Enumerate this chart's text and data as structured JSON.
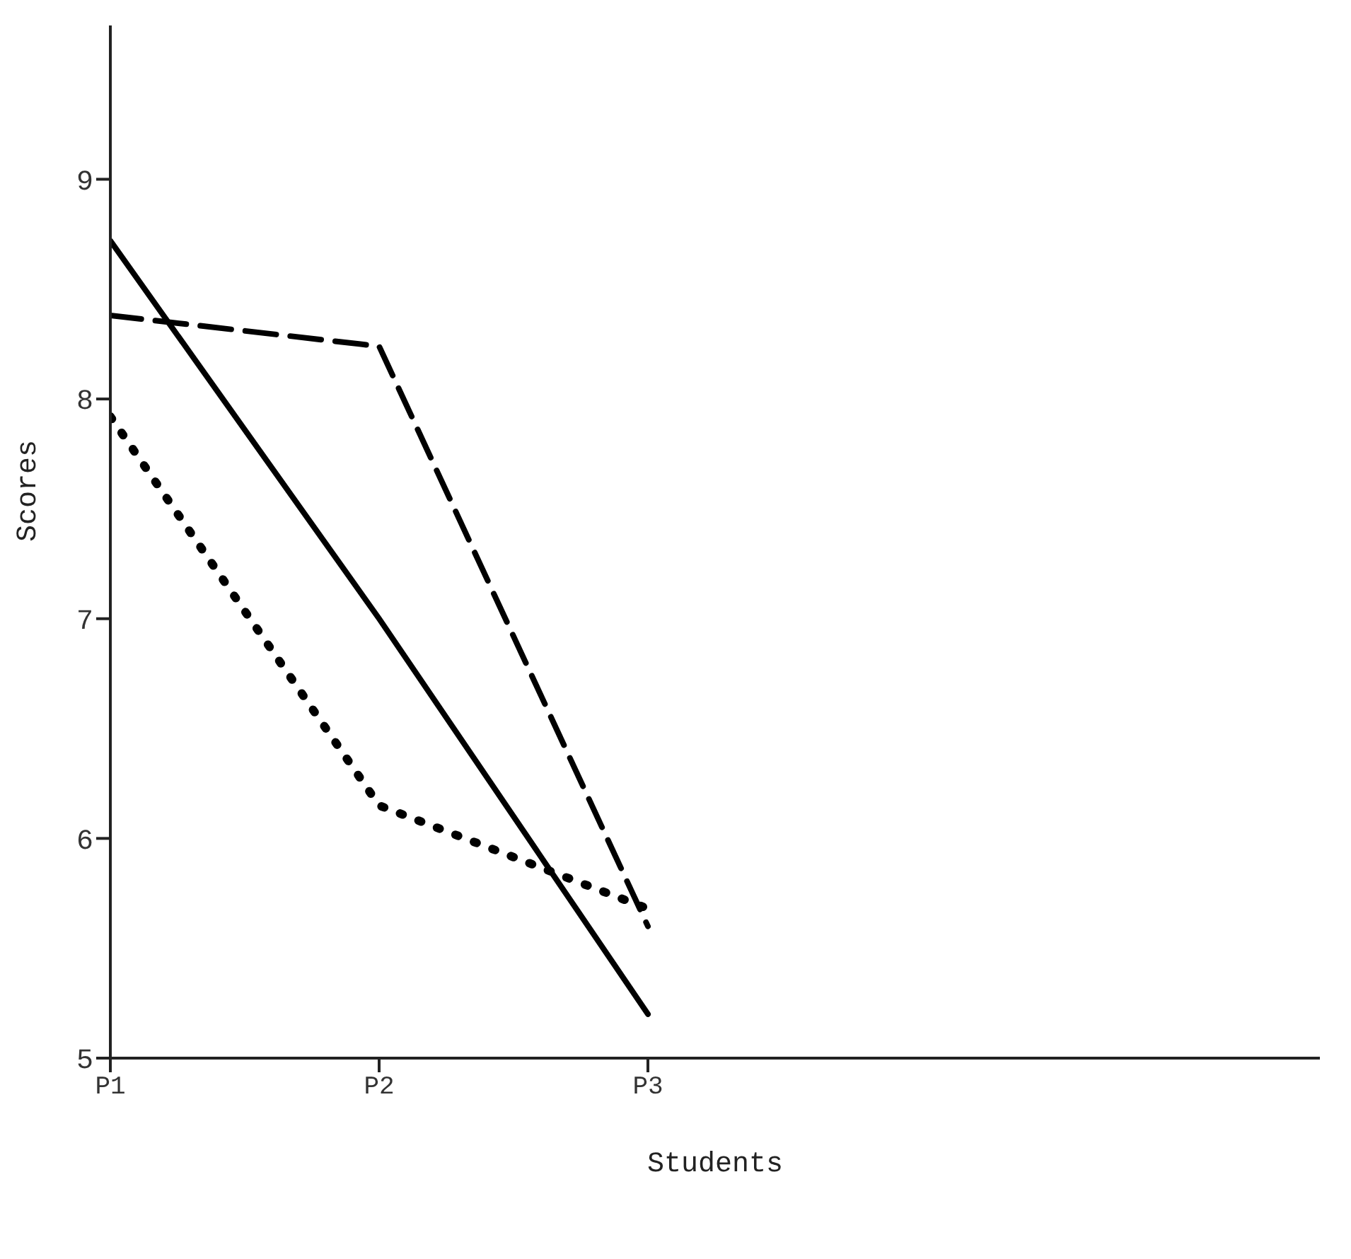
{
  "chart_data": {
    "type": "line",
    "xlabel": "Students",
    "ylabel": "Scores",
    "categories": [
      "P1",
      "P2",
      "P3"
    ],
    "ylim": [
      5,
      9.7
    ],
    "yticks": [
      5,
      6,
      7,
      8,
      9
    ],
    "grid": false,
    "legend": false,
    "marker": "none",
    "series": [
      {
        "color": "#000000",
        "line_style": "solid",
        "values": [
          8.72,
          7.0,
          5.2
        ]
      },
      {
        "color": "#000000",
        "line_style": "dashed",
        "values": [
          8.38,
          8.24,
          5.6
        ]
      },
      {
        "color": "#000000",
        "line_style": "dotted",
        "values": [
          7.92,
          6.15,
          5.68
        ]
      }
    ]
  }
}
